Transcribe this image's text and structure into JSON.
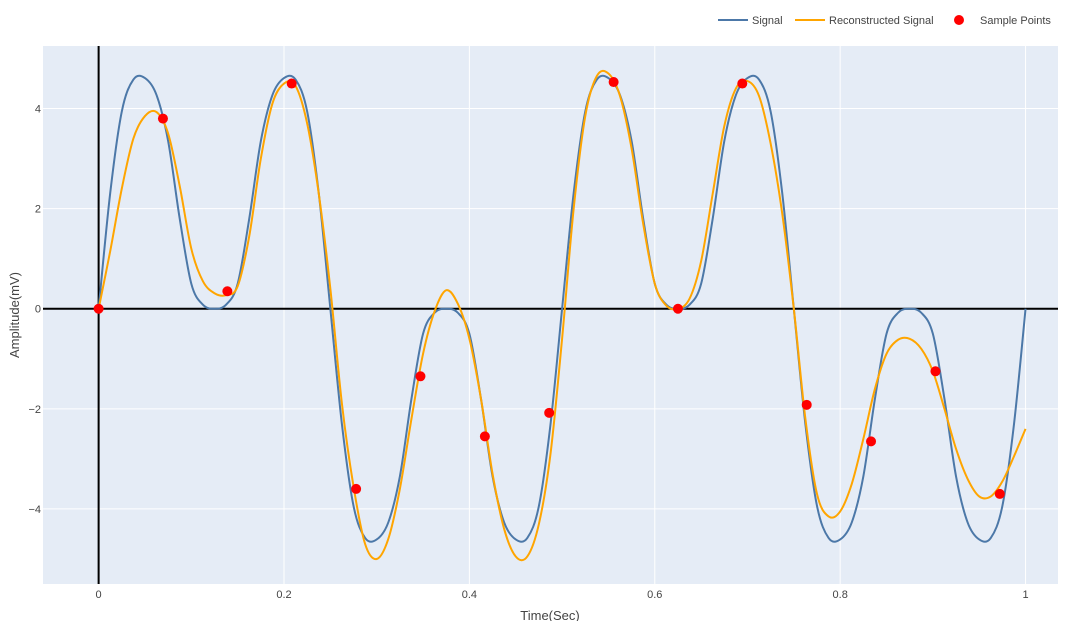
{
  "chart_data": {
    "type": "line",
    "title": "",
    "xlabel": "Time(Sec)",
    "ylabel": "Amplitude(mV)",
    "xlim": [
      -0.06,
      1.035
    ],
    "ylim": [
      -5.5,
      5.25
    ],
    "x_ticks": [
      0,
      0.2,
      0.4,
      0.6,
      0.8,
      1
    ],
    "x_tick_labels": [
      "0",
      "0.2",
      "0.4",
      "0.6",
      "0.8",
      "1"
    ],
    "y_ticks": [
      -4,
      -2,
      0,
      2,
      4
    ],
    "y_tick_labels": [
      "−4",
      "−2",
      "0",
      "2",
      "4"
    ],
    "grid": true,
    "legend_position": "top-right",
    "colors": {
      "plot_bg": "#e5ecf6",
      "grid": "#ffffff",
      "signal": "#4c78a8",
      "reconstructed": "#ffa500",
      "samples": "#ff0000",
      "zero_line": "#000000"
    },
    "series": [
      {
        "name": "Signal",
        "kind": "line",
        "x": [
          0,
          0.0125,
          0.025,
          0.0375,
          0.05,
          0.0625,
          0.075,
          0.0875,
          0.1,
          0.1125,
          0.125,
          0.1375,
          0.15,
          0.1625,
          0.175,
          0.1875,
          0.2,
          0.2125,
          0.225,
          0.2375,
          0.25,
          0.2625,
          0.275,
          0.2875,
          0.3,
          0.3125,
          0.325,
          0.3375,
          0.35,
          0.3625,
          0.375,
          0.3875,
          0.4,
          0.4125,
          0.425,
          0.4375,
          0.45,
          0.4625,
          0.475,
          0.4875,
          0.5,
          0.5125,
          0.525,
          0.5375,
          0.55,
          0.5625,
          0.575,
          0.5875,
          0.6,
          0.6125,
          0.625,
          0.6375,
          0.65,
          0.6625,
          0.675,
          0.6875,
          0.7,
          0.7125,
          0.725,
          0.7375,
          0.75,
          0.7625,
          0.775,
          0.7875,
          0.8,
          0.8125,
          0.825,
          0.8375,
          0.85,
          0.8625,
          0.875,
          0.8875,
          0.9,
          0.9125,
          0.925,
          0.9375,
          0.95,
          0.9625,
          0.975,
          0.9875,
          1
        ],
        "y": [
          0,
          2.31,
          3.94,
          4.58,
          4.61,
          4.27,
          3.35,
          1.8,
          0.5,
          0.08,
          0,
          0.08,
          0.5,
          1.8,
          3.35,
          4.27,
          4.61,
          4.58,
          3.94,
          2.31,
          0,
          -2.31,
          -3.94,
          -4.58,
          -4.61,
          -4.27,
          -3.35,
          -1.8,
          -0.5,
          -0.08,
          0,
          -0.08,
          -0.5,
          -1.8,
          -3.35,
          -4.27,
          -4.61,
          -4.58,
          -3.94,
          -2.31,
          0,
          2.31,
          3.94,
          4.58,
          4.61,
          4.27,
          3.35,
          1.8,
          0.5,
          0.08,
          0,
          0.08,
          0.5,
          1.8,
          3.35,
          4.27,
          4.61,
          4.58,
          3.94,
          2.31,
          0,
          -2.31,
          -3.94,
          -4.58,
          -4.61,
          -4.27,
          -3.35,
          -1.8,
          -0.5,
          -0.08,
          0,
          -0.08,
          -0.5,
          -1.8,
          -3.35,
          -4.27,
          -4.61,
          -4.58,
          -3.94,
          -2.31,
          0
        ]
      },
      {
        "name": "Reconstructed Signal",
        "kind": "line",
        "x": [
          0,
          0.0125,
          0.025,
          0.0375,
          0.05,
          0.0625,
          0.075,
          0.0875,
          0.1,
          0.1125,
          0.125,
          0.1375,
          0.15,
          0.1625,
          0.175,
          0.1875,
          0.2,
          0.2125,
          0.225,
          0.2375,
          0.25,
          0.2625,
          0.275,
          0.2875,
          0.3,
          0.3125,
          0.325,
          0.3375,
          0.35,
          0.3625,
          0.375,
          0.3875,
          0.4,
          0.4125,
          0.425,
          0.4375,
          0.45,
          0.4625,
          0.475,
          0.4875,
          0.5,
          0.5125,
          0.525,
          0.5375,
          0.55,
          0.5625,
          0.575,
          0.5875,
          0.6,
          0.6125,
          0.625,
          0.6375,
          0.65,
          0.6625,
          0.675,
          0.6875,
          0.7,
          0.7125,
          0.725,
          0.7375,
          0.75,
          0.7625,
          0.775,
          0.7875,
          0.8,
          0.8125,
          0.825,
          0.8375,
          0.85,
          0.8625,
          0.875,
          0.8875,
          0.9,
          0.9125,
          0.925,
          0.9375,
          0.95,
          0.9625,
          0.975,
          0.9875,
          1
        ],
        "y": [
          0,
          1.15,
          2.4,
          3.4,
          3.85,
          3.93,
          3.5,
          2.45,
          1.2,
          0.55,
          0.31,
          0.27,
          0.45,
          1.45,
          3.0,
          4.1,
          4.5,
          4.45,
          3.7,
          2.3,
          0.4,
          -1.9,
          -3.55,
          -4.7,
          -5.0,
          -4.6,
          -3.6,
          -2.2,
          -0.9,
          -0.05,
          0.37,
          0.1,
          -0.6,
          -1.8,
          -3.3,
          -4.4,
          -4.95,
          -4.95,
          -4.3,
          -2.9,
          -0.6,
          2.0,
          3.85,
          4.65,
          4.7,
          4.25,
          3.2,
          1.7,
          0.5,
          0.06,
          0,
          0.2,
          0.95,
          2.3,
          3.65,
          4.4,
          4.55,
          4.25,
          3.3,
          1.9,
          0,
          -2.2,
          -3.7,
          -4.15,
          -4.05,
          -3.5,
          -2.6,
          -1.6,
          -0.9,
          -0.62,
          -0.6,
          -0.8,
          -1.25,
          -2.0,
          -2.8,
          -3.4,
          -3.75,
          -3.75,
          -3.45,
          -2.95,
          -2.4
        ]
      },
      {
        "name": "Sample Points",
        "kind": "markers",
        "x": [
          0,
          0.0694,
          0.1389,
          0.2083,
          0.2778,
          0.3472,
          0.4167,
          0.4861,
          0.5556,
          0.625,
          0.6944,
          0.7639,
          0.8333,
          0.9028,
          0.9722
        ],
        "y": [
          0,
          3.8,
          0.35,
          4.5,
          -3.6,
          -1.35,
          -2.55,
          -2.08,
          4.53,
          0,
          4.5,
          -1.92,
          -2.65,
          -1.25,
          -3.7
        ]
      }
    ]
  }
}
